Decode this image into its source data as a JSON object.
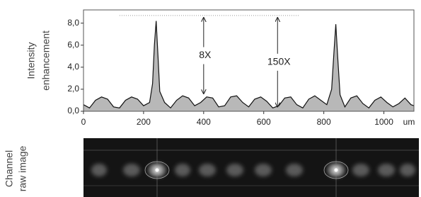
{
  "chart_data": {
    "type": "area",
    "ylabel_lines": [
      "Intensity",
      "enhancement"
    ],
    "xunit": "um",
    "image_label_lines": [
      "Channel",
      "raw image"
    ],
    "x": [
      0,
      20,
      40,
      60,
      80,
      100,
      120,
      140,
      160,
      180,
      200,
      220,
      230,
      236,
      242,
      248,
      254,
      270,
      290,
      310,
      330,
      350,
      370,
      390,
      410,
      430,
      450,
      470,
      490,
      510,
      530,
      550,
      570,
      590,
      610,
      630,
      650,
      670,
      690,
      710,
      730,
      750,
      770,
      790,
      810,
      826,
      834,
      840,
      846,
      854,
      870,
      890,
      910,
      930,
      950,
      970,
      990,
      1010,
      1030,
      1050,
      1070,
      1090,
      1100
    ],
    "values": [
      0.6,
      0.3,
      1.0,
      1.3,
      1.1,
      0.4,
      0.3,
      1.0,
      1.3,
      1.1,
      0.5,
      0.8,
      2.5,
      6.0,
      8.2,
      5.0,
      1.8,
      0.8,
      0.3,
      1.0,
      1.4,
      1.2,
      0.5,
      0.8,
      1.3,
      1.2,
      0.4,
      0.5,
      1.3,
      1.4,
      0.8,
      0.4,
      1.1,
      1.3,
      0.9,
      0.3,
      0.5,
      1.2,
      1.3,
      0.6,
      0.3,
      1.1,
      1.4,
      1.0,
      0.6,
      2.0,
      5.5,
      7.9,
      5.0,
      1.5,
      0.4,
      1.2,
      1.4,
      0.7,
      0.3,
      1.0,
      1.3,
      0.8,
      0.4,
      0.7,
      1.2,
      0.6,
      0.5
    ],
    "color": "#b8b8b8",
    "line_color": "#111111",
    "xlim": [
      0,
      1100
    ],
    "xticks": [
      0,
      200,
      400,
      600,
      800,
      1000
    ],
    "ylim": [
      0,
      9.2
    ],
    "yticks": [
      {
        "value": 0,
        "label": "0,0"
      },
      {
        "value": 2,
        "label": "2,0"
      },
      {
        "value": 4,
        "label": "4,0"
      },
      {
        "value": 6,
        "label": "6,0"
      },
      {
        "value": 8,
        "label": "8,0"
      }
    ],
    "annotations": [
      {
        "text": "8X",
        "x": 400,
        "y_from": 1.6,
        "y_to": 8.5
      },
      {
        "text": "150X",
        "x": 646,
        "y_from": 0.4,
        "y_to": 8.5
      }
    ]
  }
}
